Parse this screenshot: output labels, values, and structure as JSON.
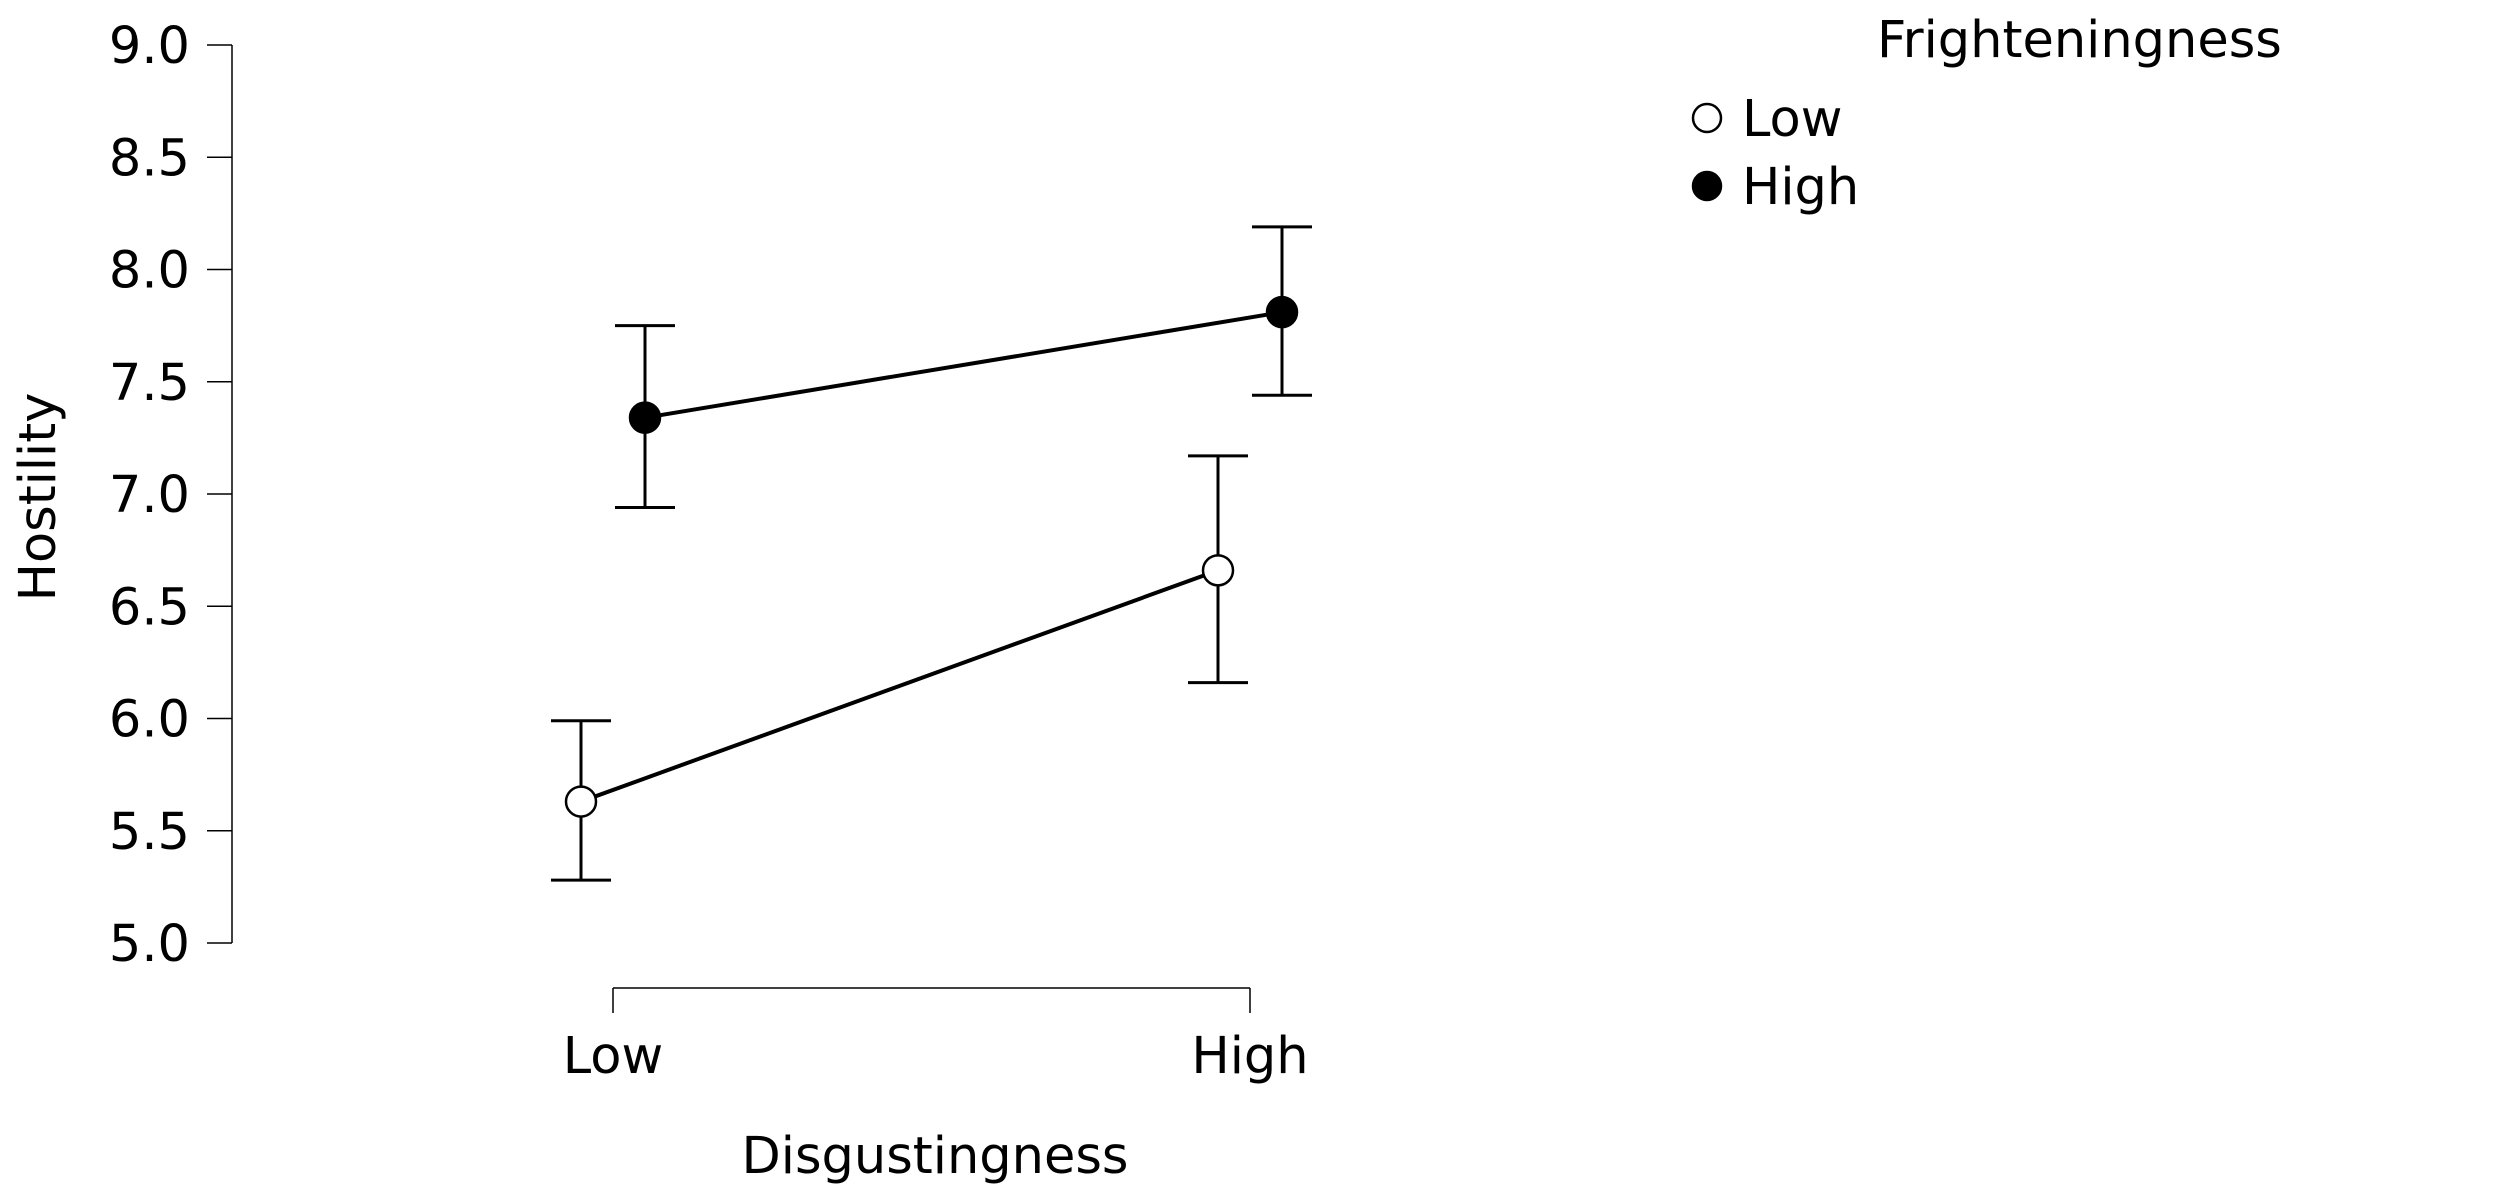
{
  "chart_data": {
    "type": "line",
    "xlabel": "Disgustingness",
    "ylabel": "Hostility",
    "categories": [
      "Low",
      "High"
    ],
    "ylim": [
      5.0,
      9.0
    ],
    "yticks": [
      "5.0",
      "5.5",
      "6.0",
      "6.5",
      "7.0",
      "7.5",
      "8.0",
      "8.5",
      "9.0"
    ],
    "grid": false,
    "legend": {
      "title": "Frighteningness",
      "placement": "top-right",
      "entries": [
        "Low",
        "High"
      ]
    },
    "series": [
      {
        "name": "Low",
        "marker": "open-circle",
        "color": "#000000",
        "fill": "#ffffff",
        "values": [
          5.63,
          6.66
        ],
        "err_low": [
          5.28,
          6.16
        ],
        "err_high": [
          5.99,
          7.17
        ]
      },
      {
        "name": "High",
        "marker": "filled-circle",
        "color": "#000000",
        "fill": "#000000",
        "values": [
          7.34,
          7.81
        ],
        "err_low": [
          6.94,
          7.44
        ],
        "err_high": [
          7.75,
          8.19
        ]
      }
    ]
  }
}
